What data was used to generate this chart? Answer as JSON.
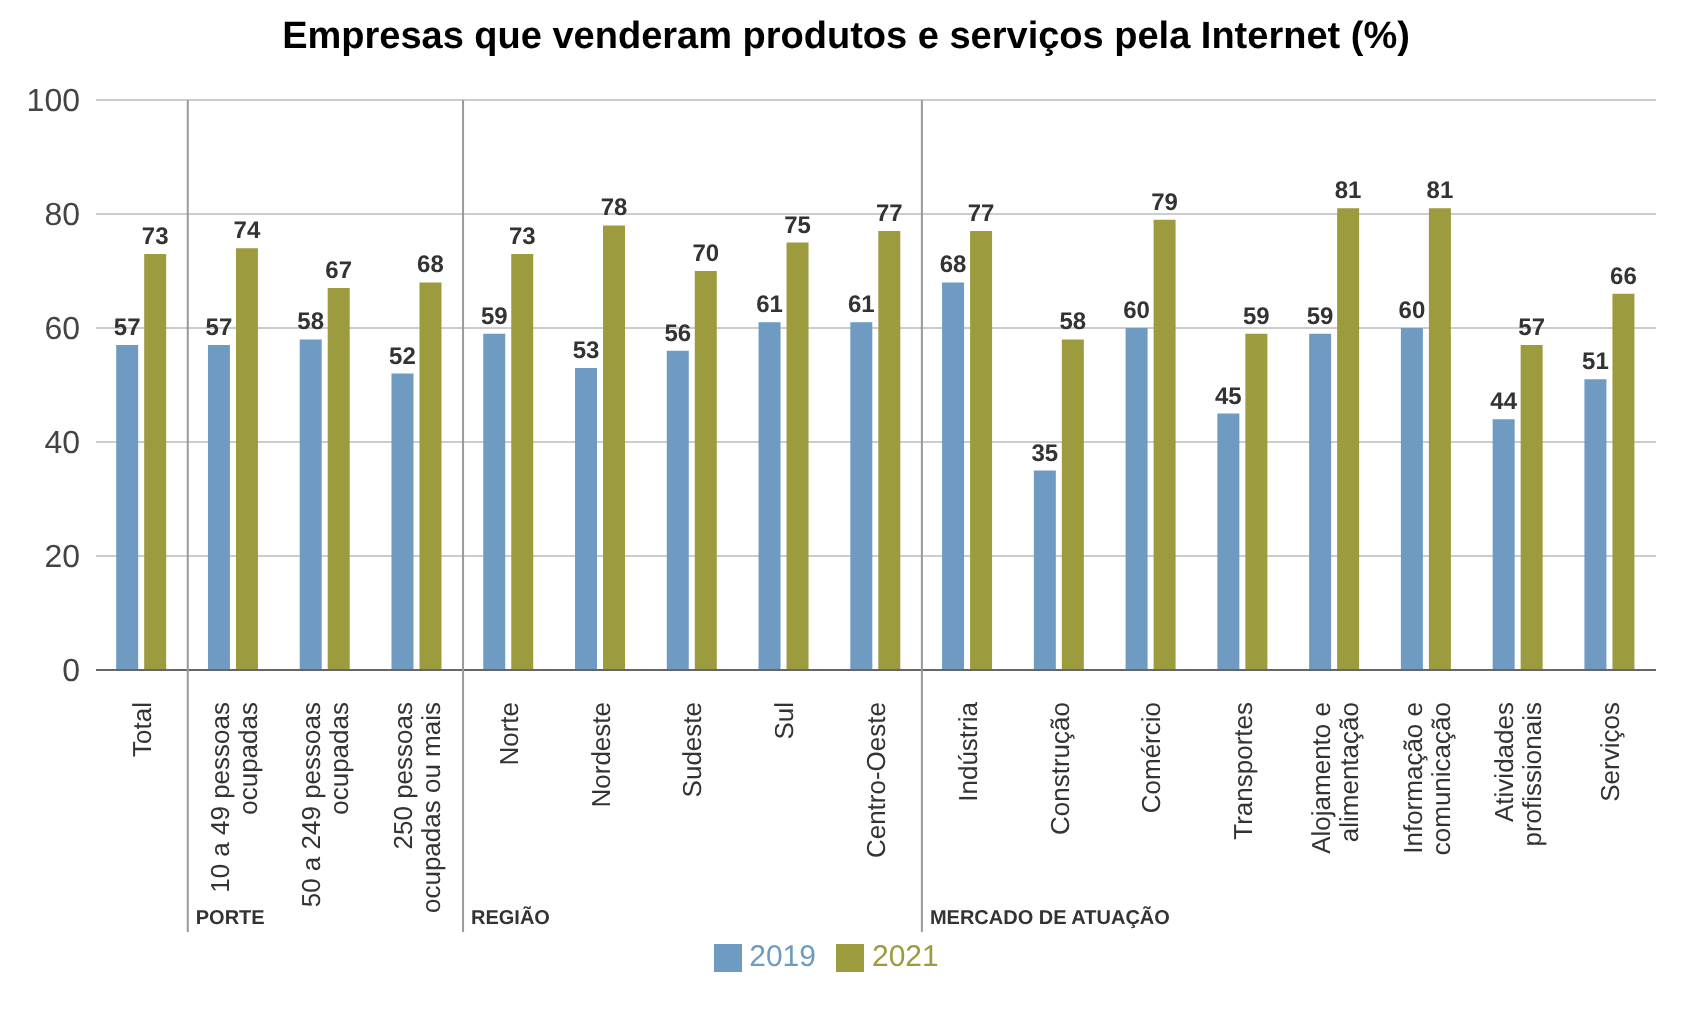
{
  "chart_data": {
    "type": "bar",
    "title": "Empresas que venderam produtos e serviços pela Internet (%)",
    "categories": [
      "Total",
      "10 a 49 pessoas ocupadas",
      "50 a 249 pessoas ocupadas",
      "250 pessoas ocupadas ou mais",
      "Norte",
      "Nordeste",
      "Sudeste",
      "Sul",
      "Centro-Oeste",
      "Indústria",
      "Construção",
      "Comércio",
      "Transportes",
      "Alojamento e alimentação",
      "Informação e comunicação",
      "Atividades profissionais",
      "Serviços"
    ],
    "series": [
      {
        "name": "2019",
        "color": "#6f9bc2",
        "values": [
          57,
          57,
          58,
          52,
          59,
          53,
          56,
          61,
          61,
          68,
          35,
          60,
          45,
          59,
          60,
          44,
          51
        ]
      },
      {
        "name": "2021",
        "color": "#9c9b3e",
        "values": [
          73,
          74,
          67,
          68,
          73,
          78,
          70,
          75,
          77,
          77,
          58,
          79,
          59,
          81,
          81,
          57,
          66
        ]
      }
    ],
    "ylim": [
      0,
      100
    ],
    "yticks": [
      0,
      20,
      40,
      60,
      80,
      100
    ],
    "grid": "y",
    "legend": "bottom",
    "data_labels": true,
    "annotations": [
      "PORTE",
      "REGIÃO",
      "MERCADO DE ATUAÇÃO"
    ]
  }
}
